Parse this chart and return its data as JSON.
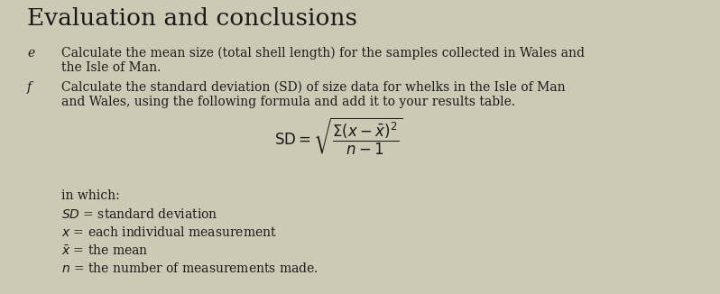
{
  "title": "Evaluation and conclusions",
  "title_fontsize": 19,
  "bg_color": "#ccc9b5",
  "text_color": "#1a1a1a",
  "label_e": "e",
  "label_f": "f",
  "line_e1": "Calculate the mean size (total shell length) for the samples collected in Wales and",
  "line_e2": "the Isle of Man.",
  "line_f1": "Calculate the standard deviation (SD) of size data for whelks in the Isle of Man",
  "line_f2": "and Wales, using the following formula and add it to your results table.",
  "in_which": "in which:",
  "body_fontsize": 10.0
}
